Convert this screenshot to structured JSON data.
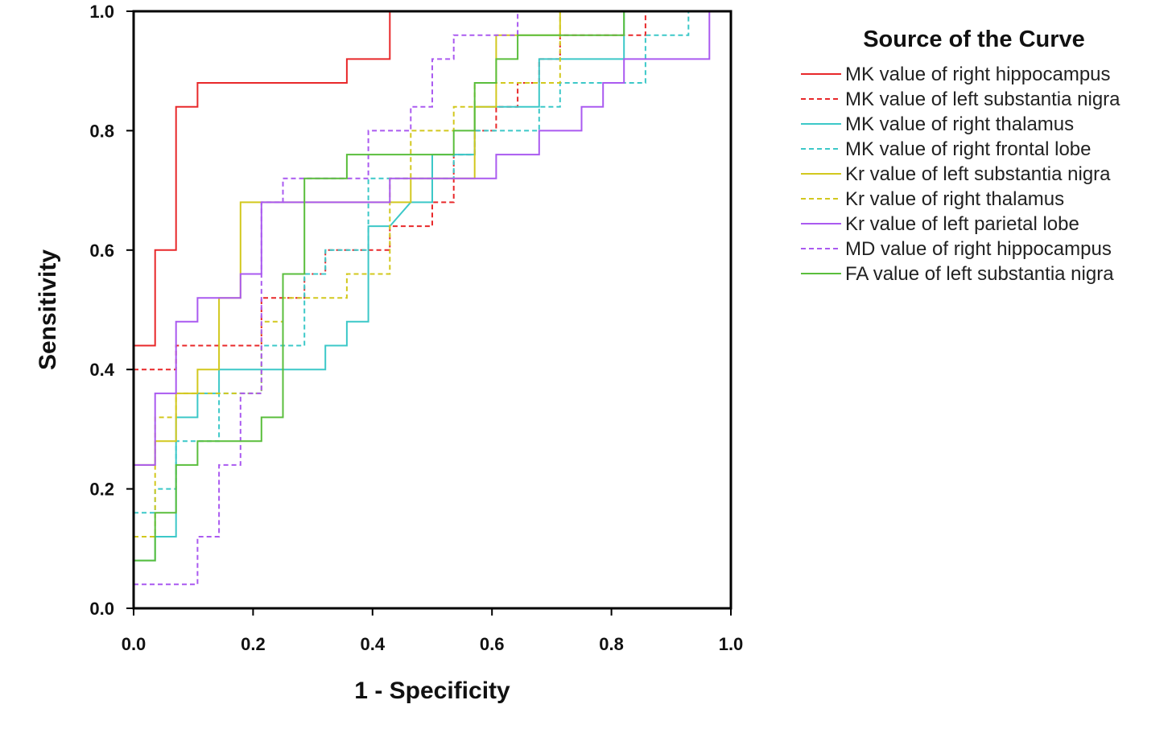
{
  "chart_data": {
    "type": "line",
    "title": "",
    "xlabel": "1 - Specificity",
    "ylabel": "Sensitivity",
    "xlim": [
      0,
      1
    ],
    "ylim": [
      0,
      1
    ],
    "x_ticks": [
      "0.0",
      "0.2",
      "0.4",
      "0.6",
      "0.8",
      "1.0"
    ],
    "y_ticks": [
      "0.0",
      "0.2",
      "0.4",
      "0.6",
      "0.8",
      "1.0"
    ],
    "grid": false,
    "legend": {
      "title": "Source of the Curve",
      "placement": "right"
    },
    "series": [
      {
        "name": "MK value of right hippocampus",
        "color": "#e8282a",
        "dashed": false,
        "points": [
          [
            0,
            0.44
          ],
          [
            0.036,
            0.44
          ],
          [
            0.036,
            0.6
          ],
          [
            0.071,
            0.6
          ],
          [
            0.071,
            0.84
          ],
          [
            0.107,
            0.84
          ],
          [
            0.107,
            0.88
          ],
          [
            0.357,
            0.88
          ],
          [
            0.357,
            0.92
          ],
          [
            0.429,
            0.92
          ],
          [
            0.429,
            1.0
          ]
        ]
      },
      {
        "name": "MK value of left substantia nigra",
        "color": "#e8282a",
        "dashed": true,
        "points": [
          [
            0,
            0.4
          ],
          [
            0.071,
            0.4
          ],
          [
            0.071,
            0.44
          ],
          [
            0.214,
            0.44
          ],
          [
            0.214,
            0.52
          ],
          [
            0.286,
            0.52
          ],
          [
            0.286,
            0.56
          ],
          [
            0.321,
            0.56
          ],
          [
            0.321,
            0.6
          ],
          [
            0.429,
            0.6
          ],
          [
            0.429,
            0.64
          ],
          [
            0.5,
            0.64
          ],
          [
            0.5,
            0.68
          ],
          [
            0.536,
            0.68
          ],
          [
            0.536,
            0.76
          ],
          [
            0.571,
            0.76
          ],
          [
            0.571,
            0.8
          ],
          [
            0.607,
            0.8
          ],
          [
            0.607,
            0.84
          ],
          [
            0.643,
            0.84
          ],
          [
            0.643,
            0.88
          ],
          [
            0.679,
            0.88
          ],
          [
            0.679,
            0.92
          ],
          [
            0.714,
            0.92
          ],
          [
            0.714,
            0.96
          ],
          [
            0.857,
            0.96
          ],
          [
            0.857,
            1.0
          ]
        ]
      },
      {
        "name": "MK value of right thalamus",
        "color": "#3cc8c8",
        "dashed": false,
        "points": [
          [
            0,
            0.08
          ],
          [
            0.036,
            0.08
          ],
          [
            0.036,
            0.12
          ],
          [
            0.071,
            0.12
          ],
          [
            0.071,
            0.32
          ],
          [
            0.107,
            0.32
          ],
          [
            0.107,
            0.36
          ],
          [
            0.143,
            0.36
          ],
          [
            0.143,
            0.4
          ],
          [
            0.321,
            0.4
          ],
          [
            0.321,
            0.44
          ],
          [
            0.357,
            0.44
          ],
          [
            0.357,
            0.48
          ],
          [
            0.393,
            0.48
          ],
          [
            0.393,
            0.64
          ],
          [
            0.429,
            0.64
          ],
          [
            0.429,
            0.64
          ],
          [
            0.464,
            0.68
          ],
          [
            0.5,
            0.68
          ],
          [
            0.5,
            0.76
          ],
          [
            0.571,
            0.76
          ],
          [
            0.571,
            0.84
          ],
          [
            0.679,
            0.84
          ],
          [
            0.679,
            0.92
          ],
          [
            0.821,
            0.92
          ],
          [
            0.821,
            1.0
          ]
        ]
      },
      {
        "name": "MK value of right frontal lobe",
        "color": "#3cc8c8",
        "dashed": true,
        "points": [
          [
            0,
            0.16
          ],
          [
            0.036,
            0.16
          ],
          [
            0.036,
            0.2
          ],
          [
            0.071,
            0.2
          ],
          [
            0.071,
            0.28
          ],
          [
            0.143,
            0.28
          ],
          [
            0.143,
            0.36
          ],
          [
            0.214,
            0.36
          ],
          [
            0.214,
            0.44
          ],
          [
            0.286,
            0.44
          ],
          [
            0.286,
            0.56
          ],
          [
            0.321,
            0.56
          ],
          [
            0.321,
            0.6
          ],
          [
            0.393,
            0.6
          ],
          [
            0.393,
            0.72
          ],
          [
            0.536,
            0.72
          ],
          [
            0.536,
            0.76
          ],
          [
            0.571,
            0.76
          ],
          [
            0.571,
            0.8
          ],
          [
            0.679,
            0.8
          ],
          [
            0.679,
            0.84
          ],
          [
            0.714,
            0.84
          ],
          [
            0.714,
            0.88
          ],
          [
            0.857,
            0.88
          ],
          [
            0.857,
            0.96
          ],
          [
            0.929,
            0.96
          ],
          [
            0.929,
            1.0
          ]
        ]
      },
      {
        "name": "Kr value of left substantia nigra",
        "color": "#d2c81e",
        "dashed": false,
        "points": [
          [
            0,
            0.24
          ],
          [
            0.036,
            0.24
          ],
          [
            0.036,
            0.28
          ],
          [
            0.071,
            0.28
          ],
          [
            0.071,
            0.36
          ],
          [
            0.107,
            0.36
          ],
          [
            0.107,
            0.4
          ],
          [
            0.143,
            0.4
          ],
          [
            0.143,
            0.52
          ],
          [
            0.179,
            0.52
          ],
          [
            0.179,
            0.68
          ],
          [
            0.464,
            0.68
          ],
          [
            0.464,
            0.72
          ],
          [
            0.571,
            0.72
          ],
          [
            0.571,
            0.84
          ],
          [
            0.607,
            0.84
          ],
          [
            0.607,
            0.96
          ],
          [
            0.714,
            0.96
          ],
          [
            0.714,
            1.0
          ]
        ]
      },
      {
        "name": "Kr value of right thalamus",
        "color": "#d2c81e",
        "dashed": true,
        "points": [
          [
            0,
            0.12
          ],
          [
            0.036,
            0.12
          ],
          [
            0.036,
            0.32
          ],
          [
            0.071,
            0.32
          ],
          [
            0.071,
            0.36
          ],
          [
            0.214,
            0.36
          ],
          [
            0.214,
            0.48
          ],
          [
            0.25,
            0.48
          ],
          [
            0.25,
            0.52
          ],
          [
            0.357,
            0.52
          ],
          [
            0.357,
            0.56
          ],
          [
            0.429,
            0.56
          ],
          [
            0.429,
            0.72
          ],
          [
            0.464,
            0.72
          ],
          [
            0.464,
            0.8
          ],
          [
            0.536,
            0.8
          ],
          [
            0.536,
            0.84
          ],
          [
            0.571,
            0.84
          ],
          [
            0.571,
            0.88
          ],
          [
            0.714,
            0.88
          ],
          [
            0.714,
            1.0
          ]
        ]
      },
      {
        "name": "Kr value of left parietal lobe",
        "color": "#aa5af0",
        "dashed": false,
        "points": [
          [
            0,
            0.24
          ],
          [
            0.036,
            0.24
          ],
          [
            0.036,
            0.36
          ],
          [
            0.071,
            0.36
          ],
          [
            0.071,
            0.48
          ],
          [
            0.107,
            0.48
          ],
          [
            0.107,
            0.52
          ],
          [
            0.179,
            0.52
          ],
          [
            0.179,
            0.56
          ],
          [
            0.214,
            0.56
          ],
          [
            0.214,
            0.68
          ],
          [
            0.429,
            0.68
          ],
          [
            0.429,
            0.72
          ],
          [
            0.607,
            0.72
          ],
          [
            0.607,
            0.76
          ],
          [
            0.679,
            0.76
          ],
          [
            0.679,
            0.8
          ],
          [
            0.75,
            0.8
          ],
          [
            0.75,
            0.84
          ],
          [
            0.786,
            0.84
          ],
          [
            0.786,
            0.88
          ],
          [
            0.821,
            0.88
          ],
          [
            0.821,
            0.92
          ],
          [
            0.964,
            0.92
          ],
          [
            0.964,
            1.0
          ]
        ]
      },
      {
        "name": "MD value of right hippocampus",
        "color": "#aa5af0",
        "dashed": true,
        "points": [
          [
            0,
            0.04
          ],
          [
            0.107,
            0.04
          ],
          [
            0.107,
            0.12
          ],
          [
            0.143,
            0.12
          ],
          [
            0.143,
            0.24
          ],
          [
            0.179,
            0.24
          ],
          [
            0.179,
            0.36
          ],
          [
            0.214,
            0.36
          ],
          [
            0.214,
            0.68
          ],
          [
            0.25,
            0.68
          ],
          [
            0.25,
            0.72
          ],
          [
            0.393,
            0.72
          ],
          [
            0.393,
            0.8
          ],
          [
            0.464,
            0.8
          ],
          [
            0.464,
            0.84
          ],
          [
            0.5,
            0.84
          ],
          [
            0.5,
            0.92
          ],
          [
            0.536,
            0.92
          ],
          [
            0.536,
            0.96
          ],
          [
            0.643,
            0.96
          ],
          [
            0.643,
            1.0
          ]
        ]
      },
      {
        "name": "FA value of left substantia nigra",
        "color": "#5abe3c",
        "dashed": false,
        "points": [
          [
            0,
            0.08
          ],
          [
            0.036,
            0.08
          ],
          [
            0.036,
            0.16
          ],
          [
            0.071,
            0.16
          ],
          [
            0.071,
            0.24
          ],
          [
            0.107,
            0.24
          ],
          [
            0.107,
            0.28
          ],
          [
            0.214,
            0.28
          ],
          [
            0.214,
            0.32
          ],
          [
            0.25,
            0.32
          ],
          [
            0.25,
            0.56
          ],
          [
            0.286,
            0.56
          ],
          [
            0.286,
            0.72
          ],
          [
            0.357,
            0.72
          ],
          [
            0.357,
            0.76
          ],
          [
            0.536,
            0.76
          ],
          [
            0.536,
            0.8
          ],
          [
            0.571,
            0.8
          ],
          [
            0.571,
            0.88
          ],
          [
            0.607,
            0.88
          ],
          [
            0.607,
            0.92
          ],
          [
            0.643,
            0.92
          ],
          [
            0.643,
            0.96
          ],
          [
            0.821,
            0.96
          ],
          [
            0.821,
            1.0
          ]
        ]
      }
    ]
  }
}
